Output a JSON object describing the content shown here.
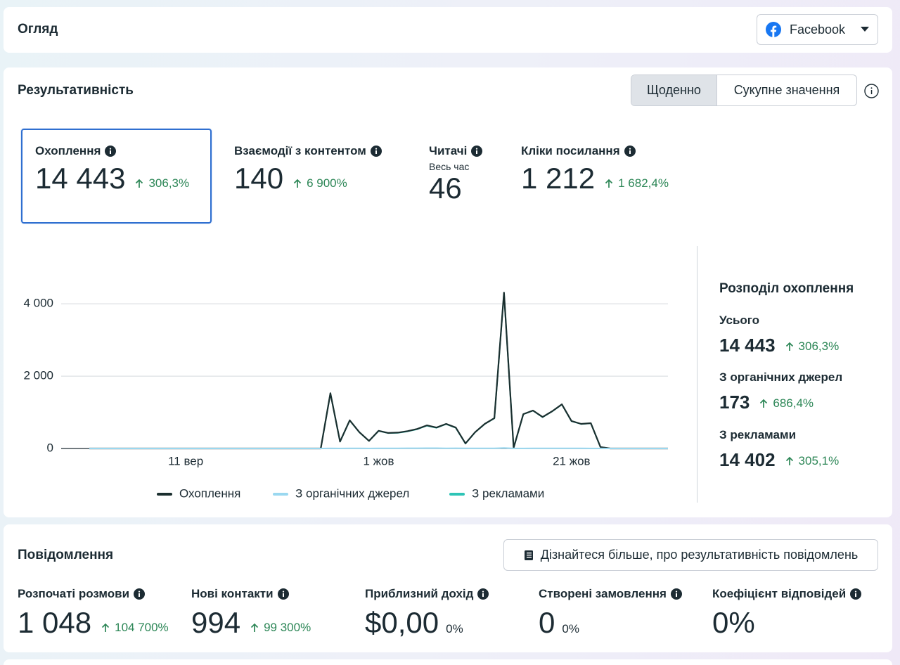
{
  "header": {
    "title": "Огляд",
    "platform": "Facebook"
  },
  "performance": {
    "title": "Результативність",
    "toggle": [
      "Щоденно",
      "Сукупне значення"
    ],
    "metrics": [
      {
        "label": "Охоплення",
        "value": "14 443",
        "change": "306,3%"
      },
      {
        "label": "Взаємодії з контентом",
        "value": "140",
        "change": "6 900%"
      },
      {
        "label": "Читачі",
        "sublabel": "Весь час",
        "value": "46"
      },
      {
        "label": "Кліки посилання",
        "value": "1 212",
        "change": "1 682,4%"
      }
    ],
    "breakdown": {
      "title": "Розподіл охоплення",
      "items": [
        {
          "label": "Усього",
          "value": "14 443",
          "change": "306,3%"
        },
        {
          "label": "З органічних джерел",
          "value": "173",
          "change": "686,4%"
        },
        {
          "label": "З рекламами",
          "value": "14 402",
          "change": "305,1%"
        }
      ]
    }
  },
  "chart_data": {
    "type": "line",
    "categories": [
      null,
      null,
      null,
      null,
      null,
      null,
      null,
      null,
      null,
      null,
      "11 вер",
      null,
      null,
      null,
      null,
      null,
      null,
      null,
      null,
      null,
      null,
      null,
      null,
      null,
      null,
      null,
      null,
      null,
      null,
      null,
      "1 жов",
      null,
      null,
      null,
      null,
      null,
      null,
      null,
      null,
      null,
      null,
      null,
      null,
      null,
      null,
      null,
      null,
      null,
      null,
      null,
      "21 жов",
      null,
      null,
      null,
      null,
      null,
      null,
      null,
      null,
      null,
      null
    ],
    "series": [
      {
        "name": "Охоплення",
        "color": "#1b2f2f",
        "values": [
          0,
          0,
          0,
          0,
          0,
          0,
          0,
          0,
          0,
          0,
          0,
          0,
          0,
          0,
          0,
          0,
          0,
          0,
          0,
          0,
          0,
          0,
          0,
          0,
          0,
          1530,
          190,
          780,
          450,
          210,
          490,
          430,
          440,
          480,
          540,
          640,
          580,
          680,
          580,
          140,
          450,
          680,
          840,
          4310,
          20,
          950,
          1050,
          870,
          1030,
          1220,
          760,
          680,
          700,
          40,
          0,
          0,
          0,
          0,
          0,
          0,
          0
        ]
      },
      {
        "name": "З органічних джерел",
        "color": "#9ad8f0",
        "values": [
          0,
          0,
          0,
          0,
          0,
          0,
          0,
          0,
          0,
          0,
          0,
          0,
          0,
          0,
          0,
          0,
          0,
          0,
          0,
          0,
          0,
          0,
          0,
          0,
          0,
          3,
          2,
          4,
          3,
          2,
          5,
          4,
          6,
          8,
          7,
          10,
          9,
          6,
          8,
          5,
          3,
          4,
          6,
          14,
          2,
          2,
          4,
          5,
          3,
          4,
          6,
          3,
          2,
          1,
          0,
          0,
          0,
          0,
          0,
          0,
          0
        ]
      },
      {
        "name": "З рекламами",
        "color": "#2ec4b6",
        "values": [
          0,
          0,
          0,
          0,
          0,
          0,
          0,
          0,
          0,
          0,
          0,
          0,
          0,
          0,
          0,
          0,
          0,
          0,
          0,
          0,
          0,
          0,
          0,
          0,
          0,
          1527,
          188,
          776,
          447,
          208,
          485,
          426,
          434,
          472,
          533,
          630,
          571,
          674,
          572,
          135,
          447,
          676,
          834,
          4296,
          18,
          948,
          1046,
          865,
          1027,
          1216,
          754,
          677,
          698,
          39,
          0,
          0,
          0,
          0,
          0,
          0,
          0
        ]
      }
    ],
    "ylim": [
      0,
      4800
    ],
    "yticks": [
      0,
      {
        "value": 2000,
        "label": "2 000"
      },
      {
        "value": 4000,
        "label": "4 000"
      }
    ],
    "grid": true,
    "legend": "bottom"
  },
  "messages": {
    "title": "Повідомлення",
    "button": "Дізнайтеся більше, про результативність повідомлень",
    "metrics": [
      {
        "label": "Розпочаті розмови",
        "value": "1 048",
        "change": "104 700%"
      },
      {
        "label": "Нові контакти",
        "value": "994",
        "change": "99 300%"
      },
      {
        "label": "Приблизний дохід",
        "value": "$0,00",
        "change": "0%"
      },
      {
        "label": "Створені замовлення",
        "value": "0",
        "change": "0%"
      },
      {
        "label": "Коефіцієнт відповідей",
        "value": "0%"
      }
    ]
  }
}
